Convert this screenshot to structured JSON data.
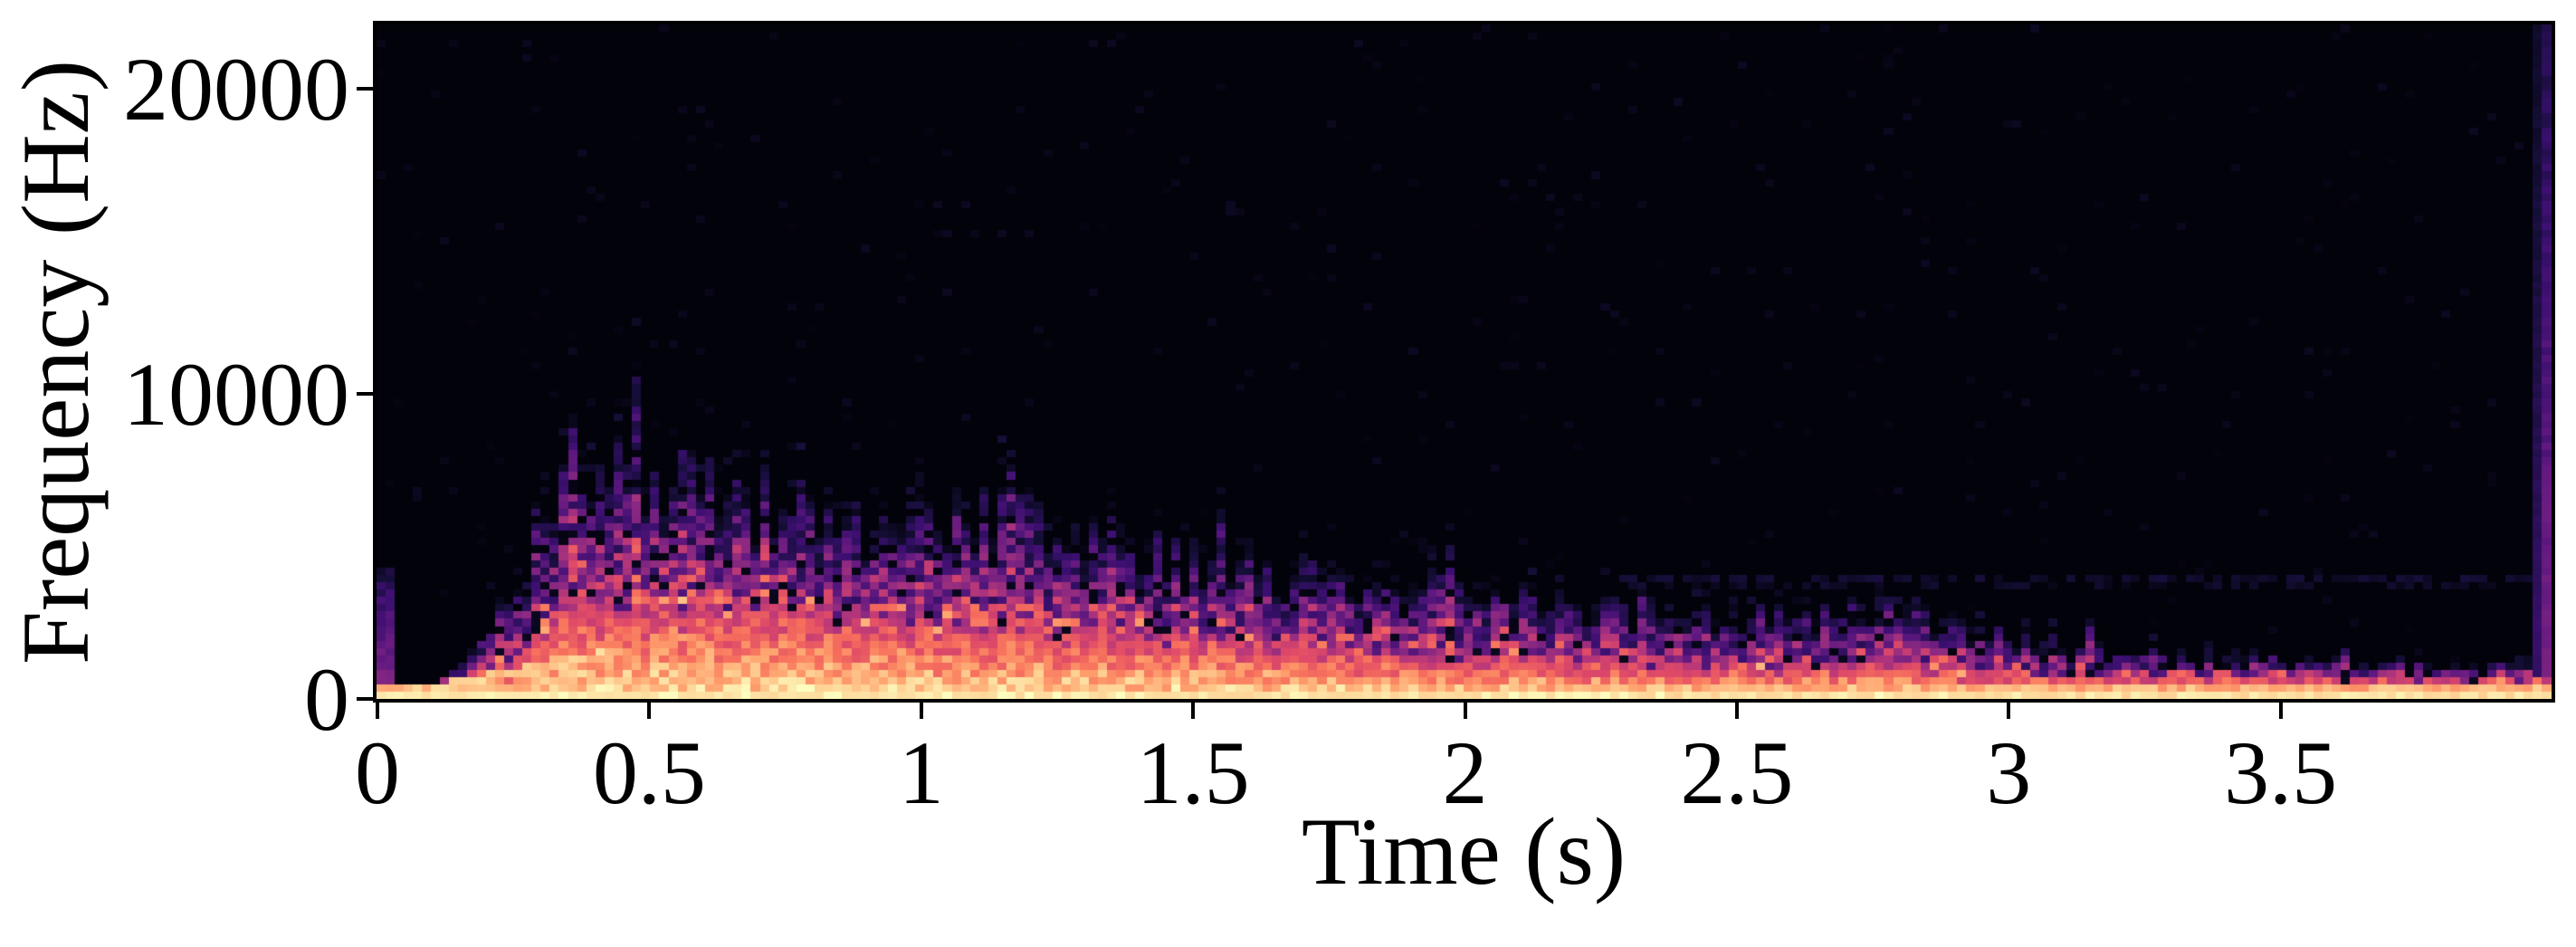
{
  "figure": {
    "background": "#ffffff",
    "plot_background": "#000004",
    "spine_color": "#000000"
  },
  "chart_data": {
    "type": "heatmap",
    "subtype": "audio-spectrogram",
    "title": "",
    "xlabel": "Time (s)",
    "ylabel": "Frequency (Hz)",
    "xlim": [
      0,
      4.0
    ],
    "ylim": [
      0,
      22110
    ],
    "xticks": [
      0,
      0.5,
      1,
      1.5,
      2,
      2.5,
      3,
      3.5
    ],
    "xtick_labels": [
      "0",
      "0.5",
      "1",
      "1.5",
      "2",
      "2.5",
      "3",
      "3.5"
    ],
    "yticks": [
      0,
      10000,
      20000
    ],
    "ytick_labels": [
      "0",
      "10000",
      "20000"
    ],
    "grid": false,
    "legend": false,
    "colormap": "magma",
    "colormap_stops": [
      [
        0.0,
        "#000004"
      ],
      [
        0.1,
        "#140e36"
      ],
      [
        0.2,
        "#3b0f70"
      ],
      [
        0.3,
        "#651a80"
      ],
      [
        0.4,
        "#8c2981"
      ],
      [
        0.5,
        "#b73779"
      ],
      [
        0.6,
        "#de4968"
      ],
      [
        0.7,
        "#f7705c"
      ],
      [
        0.8,
        "#fe9f6d"
      ],
      [
        0.9,
        "#fecf92"
      ],
      [
        1.0,
        "#fcfdbf"
      ]
    ],
    "envelopes": {
      "description": "Upper frequency extent (Hz) of the weak purple noise field and of the strong orange energy band over time (s); sound rises sharply near t=0.3 s, peaks ~7 kHz around t=0.45 s, then decays until t=4 s.",
      "t": [
        0.0,
        0.06,
        0.1,
        0.15,
        0.2,
        0.25,
        0.3,
        0.35,
        0.4,
        0.45,
        0.5,
        0.6,
        0.7,
        0.8,
        0.9,
        1.0,
        1.15,
        1.25,
        1.33,
        1.45,
        1.6,
        1.75,
        1.9,
        2.0,
        2.15,
        2.3,
        2.45,
        2.6,
        2.7,
        2.8,
        2.9,
        3.0,
        3.1,
        3.25,
        3.4,
        3.55,
        3.7,
        3.85,
        3.99
      ],
      "noise_top_hz": [
        200,
        250,
        500,
        1100,
        2000,
        3600,
        5600,
        6600,
        6900,
        7000,
        6900,
        6500,
        6200,
        6000,
        5800,
        5700,
        5900,
        5600,
        5100,
        4400,
        4000,
        3700,
        3400,
        3300,
        3000,
        2700,
        2600,
        2500,
        3000,
        2900,
        2200,
        1900,
        1800,
        1400,
        1300,
        1150,
        1100,
        1050,
        1000
      ],
      "strong_top_hz": [
        120,
        150,
        250,
        500,
        800,
        1400,
        2100,
        2800,
        3100,
        3300,
        3300,
        3100,
        2900,
        2700,
        2600,
        2500,
        2400,
        2300,
        2100,
        2000,
        1900,
        1700,
        1500,
        1400,
        1300,
        1200,
        1100,
        1000,
        1200,
        1100,
        950,
        850,
        800,
        750,
        700,
        650,
        600,
        570,
        550
      ]
    },
    "events": {
      "onset_click": {
        "t": 0.0,
        "max_hz": 4300
      },
      "attack_streak": {
        "t_start": 0.04,
        "t_end": 0.58,
        "hz_per_s": 3600,
        "base_hz": 100
      },
      "end_transient": {
        "t": 3.98,
        "max_hz": 22110
      },
      "faint_partials_hz": [
        3650,
        3950
      ],
      "faint_partials_t_start": 2.25,
      "baseline_band_hz": 300
    },
    "texture": {
      "time_bins": 238,
      "freq_bins": 92,
      "seed": 7
    }
  }
}
